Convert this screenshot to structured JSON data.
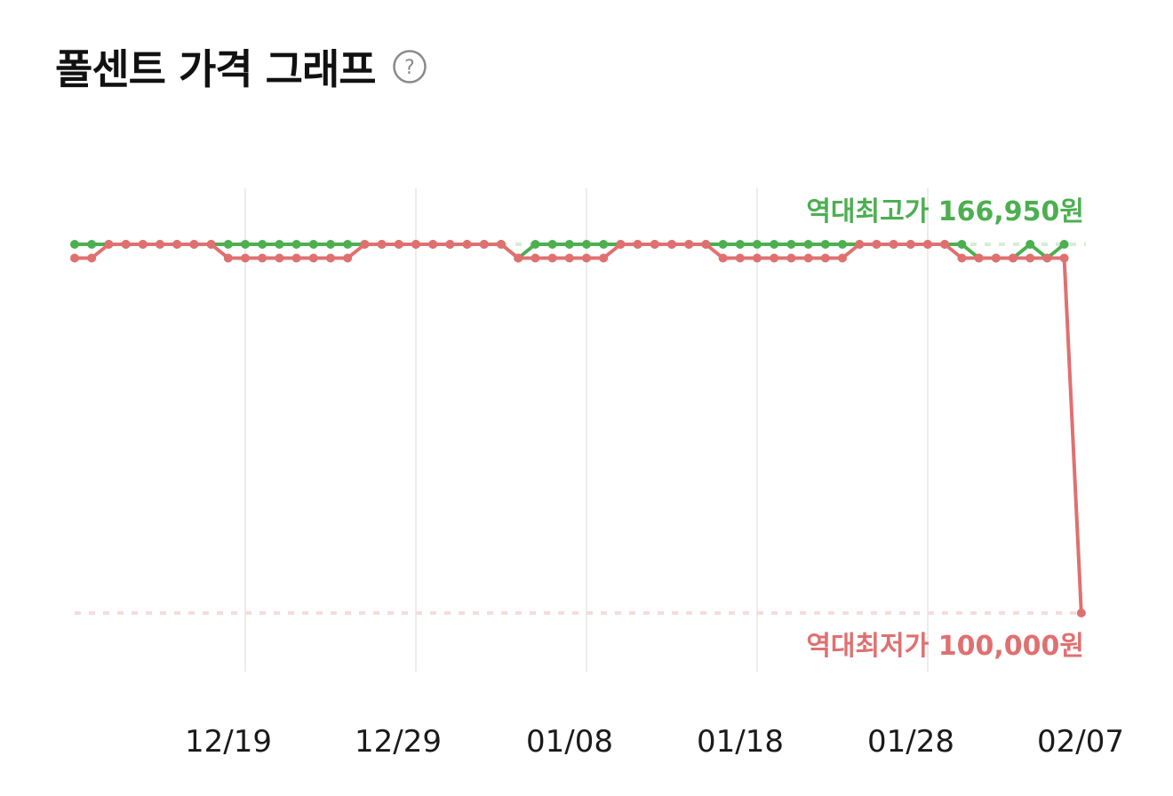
{
  "header": {
    "title": "폴센트 가격 그래프",
    "help_icon": "question-circle-icon"
  },
  "chart_data": {
    "type": "line",
    "x_start": "12/09",
    "x_end": "02/07",
    "xticks": [
      "12/19",
      "12/29",
      "01/08",
      "01/18",
      "01/28",
      "02/07"
    ],
    "ylim": [
      100000,
      166950
    ],
    "grid": "vertical",
    "max_label": "역대최고가 166,950원",
    "min_label": "역대최저가 100,000원",
    "max_value": 166950,
    "min_value": 100000,
    "series": [
      {
        "color": "#4caf50",
        "values": [
          166950,
          166950,
          166950,
          166950,
          166950,
          166950,
          166950,
          166950,
          166950,
          166950,
          166950,
          166950,
          166950,
          166950,
          166950,
          166950,
          166950,
          166950,
          166950,
          166950,
          166950,
          166950,
          166950,
          166950,
          166950,
          166950,
          164450,
          166950,
          166950,
          166950,
          166950,
          166950,
          166950,
          166950,
          166950,
          166950,
          166950,
          166950,
          166950,
          166950,
          166950,
          166950,
          166950,
          166950,
          166950,
          166950,
          166950,
          166950,
          166950,
          166950,
          166950,
          166950,
          166950,
          164450,
          164450,
          164450,
          166950,
          164450,
          166950
        ]
      },
      {
        "color": "#e07070",
        "values": [
          164450,
          164450,
          166950,
          166950,
          166950,
          166950,
          166950,
          166950,
          166950,
          164450,
          164450,
          164450,
          164450,
          164450,
          164450,
          164450,
          164450,
          166950,
          166950,
          166950,
          166950,
          166950,
          166950,
          166950,
          166950,
          166950,
          164450,
          164450,
          164450,
          164450,
          164450,
          164450,
          166950,
          166950,
          166950,
          166950,
          166950,
          166950,
          164450,
          164450,
          164450,
          164450,
          164450,
          164450,
          164450,
          164450,
          166950,
          166950,
          166950,
          166950,
          166950,
          166950,
          164450,
          164450,
          164450,
          164450,
          164450,
          164450,
          164450,
          100000
        ]
      }
    ]
  }
}
